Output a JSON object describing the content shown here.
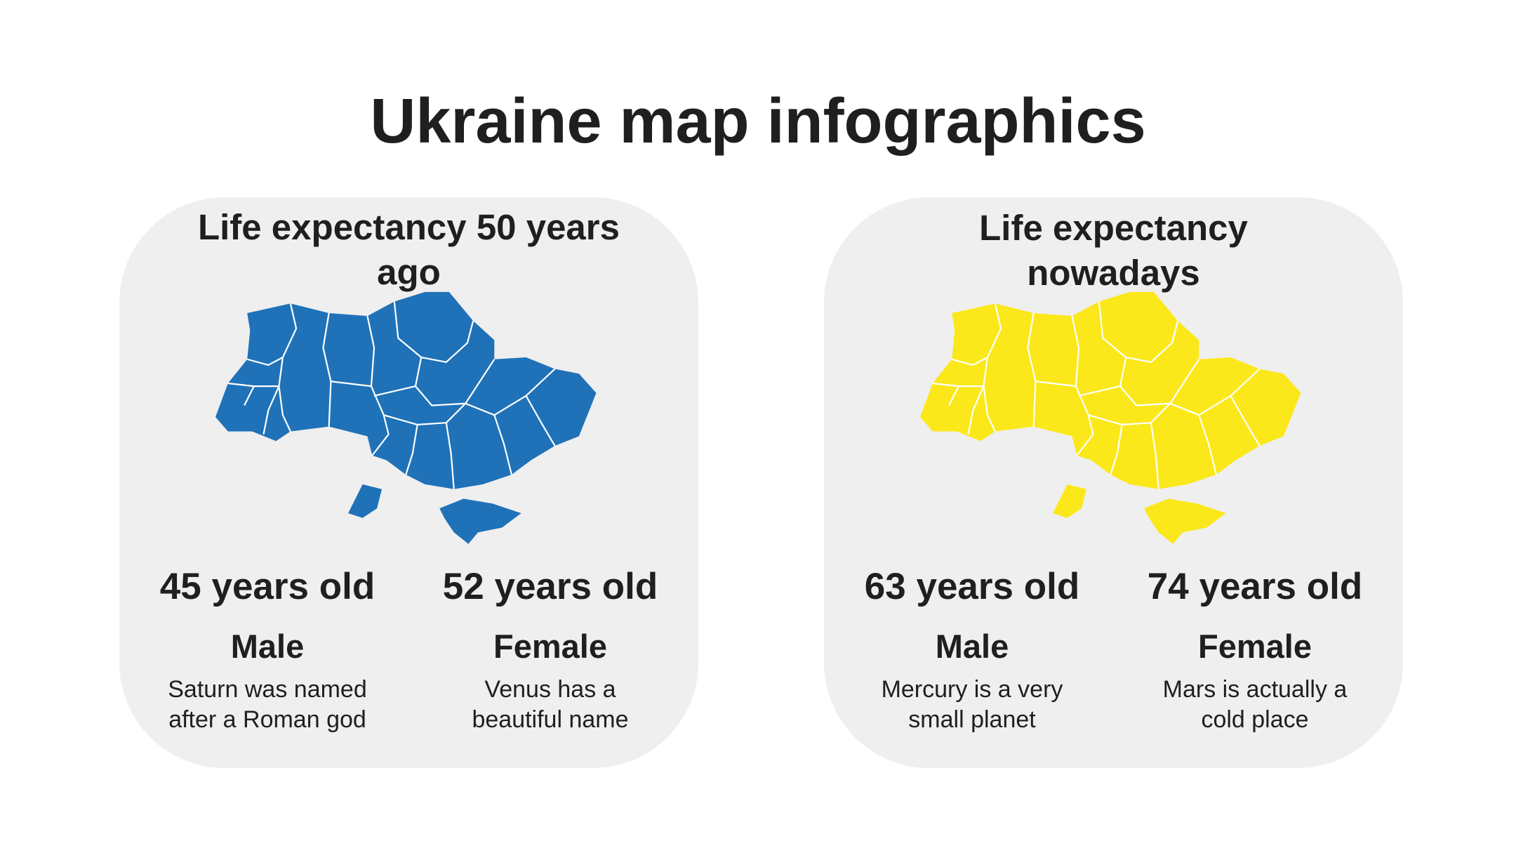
{
  "title": "Ukraine map infographics",
  "panels": [
    {
      "heading": "Life expectancy 50 years ago",
      "stats": [
        {
          "value": "45 years old",
          "label": "Male",
          "description": "Saturn was named after a Roman god"
        },
        {
          "value": "52 years old",
          "label": "Female",
          "description": "Venus has a beautiful name"
        }
      ]
    },
    {
      "heading": "Life expectancy nowadays",
      "stats": [
        {
          "value": "63 years old",
          "label": "Male",
          "description": "Mercury is a very small planet"
        },
        {
          "value": "74 years old",
          "label": "Female",
          "description": "Mars is actually a cold place"
        }
      ]
    }
  ]
}
